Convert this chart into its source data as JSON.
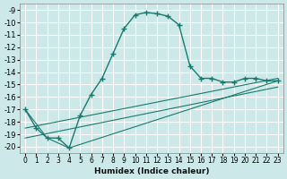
{
  "xlabel": "Humidex (Indice chaleur)",
  "bg_color": "#cce8e8",
  "grid_color": "#ffffff",
  "line_color": "#1a7a6e",
  "xlim": [
    -0.5,
    23.5
  ],
  "ylim": [
    -20.5,
    -8.5
  ],
  "yticks": [
    -9,
    -10,
    -11,
    -12,
    -13,
    -14,
    -15,
    -16,
    -17,
    -18,
    -19,
    -20
  ],
  "xticks": [
    0,
    1,
    2,
    3,
    4,
    5,
    6,
    7,
    8,
    9,
    10,
    11,
    12,
    13,
    14,
    15,
    16,
    17,
    18,
    19,
    20,
    21,
    22,
    23
  ],
  "line1_x": [
    0,
    1,
    2,
    3,
    4,
    5,
    6,
    7,
    8,
    9,
    10,
    11,
    12,
    13,
    14,
    15,
    16,
    17,
    18,
    19,
    20,
    21,
    22,
    23
  ],
  "line1_y": [
    -17.0,
    -18.5,
    -19.3,
    -19.3,
    -20.1,
    -17.5,
    -15.8,
    -14.5,
    -12.5,
    -10.5,
    -9.4,
    -9.2,
    -9.3,
    -9.5,
    -10.2,
    -13.5,
    -14.5,
    -14.5,
    -14.8,
    -14.8,
    -14.5,
    -14.5,
    -14.7,
    -14.7
  ],
  "line2_x": [
    0,
    2,
    4,
    23
  ],
  "line2_y": [
    -17.0,
    -19.3,
    -20.1,
    -14.7
  ],
  "line3_x": [
    0,
    23
  ],
  "line3_y": [
    -18.5,
    -14.5
  ],
  "line4_x": [
    0,
    23
  ],
  "line4_y": [
    -19.3,
    -15.2
  ]
}
